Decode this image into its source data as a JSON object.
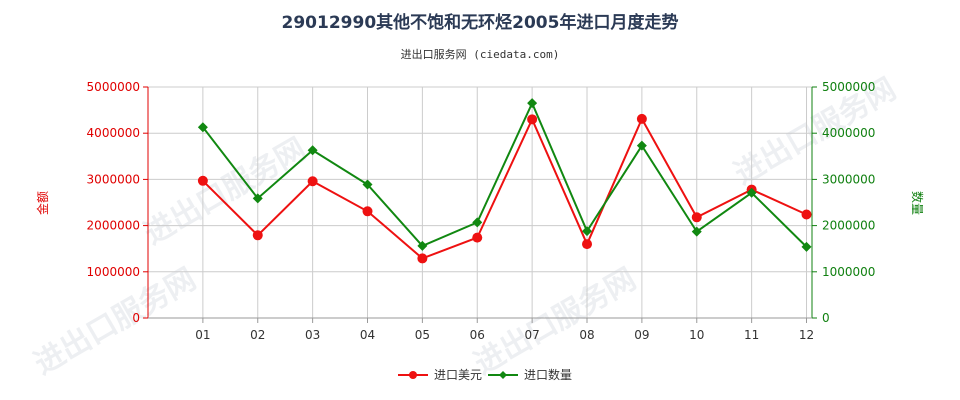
{
  "colors": {
    "left_axis": "#e00000",
    "right_axis": "#108010",
    "series_usd": "#ee1111",
    "series_qty": "#118811",
    "grid": "#cccccc",
    "title": "#2b3a55"
  },
  "watermark_text": "进出口服务网",
  "chart_data": {
    "type": "line",
    "title": "29012990其他不饱和无环烃2005年进口月度走势",
    "subtitle": "进出口服务网 (ciedata.com)",
    "xlabel": "",
    "ylabel_left": "金额",
    "ylabel_right": "数量",
    "categories": [
      "01",
      "02",
      "03",
      "04",
      "05",
      "06",
      "07",
      "08",
      "09",
      "10",
      "11",
      "12"
    ],
    "ylim_left": [
      0,
      5000000
    ],
    "ylim_right": [
      0,
      5000000
    ],
    "yticks_left": [
      "0",
      "1000000",
      "2000000",
      "3000000",
      "4000000",
      "5000000"
    ],
    "yticks_right": [
      "0",
      "1000000",
      "2000000",
      "3000000",
      "4000000",
      "5000000"
    ],
    "grid": true,
    "legend_position": "bottom",
    "series": [
      {
        "name": "进口美元",
        "axis": "left",
        "marker": "circle",
        "color_key": "series_usd",
        "values": [
          2970000,
          1790000,
          2960000,
          2310000,
          1290000,
          1740000,
          4300000,
          1600000,
          4310000,
          2180000,
          2780000,
          2240000
        ]
      },
      {
        "name": "进口数量",
        "axis": "right",
        "marker": "diamond",
        "color_key": "series_qty",
        "values": [
          4130000,
          2590000,
          3630000,
          2890000,
          1560000,
          2070000,
          4650000,
          1880000,
          3730000,
          1870000,
          2710000,
          1540000
        ]
      }
    ]
  }
}
